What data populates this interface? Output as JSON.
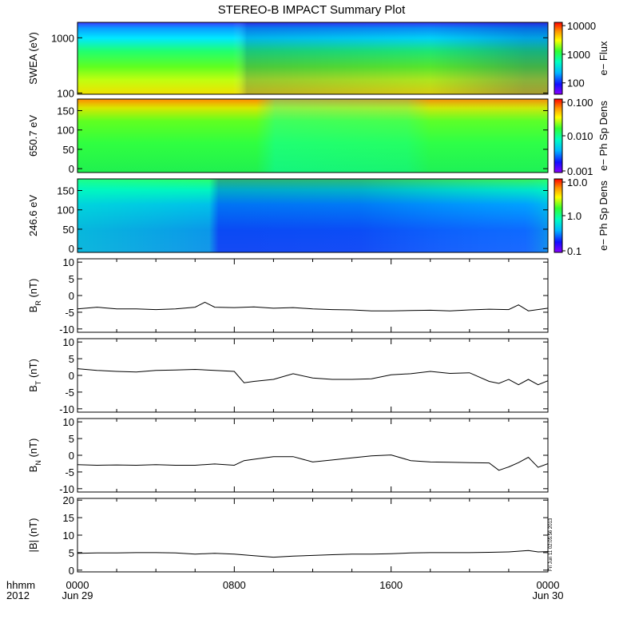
{
  "title": "STEREO-B IMPACT Summary Plot",
  "footer": {
    "format_label": "hhmm",
    "year": "2012"
  },
  "x_axis": {
    "range_hours": [
      0,
      24
    ],
    "ticks": [
      {
        "hour": 0,
        "label": "0000",
        "date": "Jun 29"
      },
      {
        "hour": 8,
        "label": "0800",
        "date": ""
      },
      {
        "hour": 16,
        "label": "1600",
        "date": ""
      },
      {
        "hour": 24,
        "label": "0000",
        "date": "Jun 30"
      }
    ]
  },
  "stamp": "Fri Jun 11 02:05:56 2013",
  "spectrograms": [
    {
      "id": "swea",
      "ylabel": "SWEA (eV)",
      "ylim": [
        95,
        1900
      ],
      "log_y": true,
      "yticks": [
        {
          "v": 100,
          "label": "100"
        },
        {
          "v": 1000,
          "label": "1000"
        }
      ],
      "colorbar": {
        "label": "e− Flux",
        "range": [
          40,
          13000
        ],
        "log": true,
        "ticks": [
          {
            "v": 100,
            "label": "100"
          },
          {
            "v": 1000,
            "label": "1000"
          },
          {
            "v": 10000,
            "label": "10000"
          }
        ]
      }
    },
    {
      "id": "pad650",
      "ylabel": "650.7 eV",
      "ylim": [
        -10,
        180
      ],
      "log_y": false,
      "yticks": [
        {
          "v": 0,
          "label": "0"
        },
        {
          "v": 50,
          "label": "50"
        },
        {
          "v": 100,
          "label": "100"
        },
        {
          "v": 150,
          "label": "150"
        }
      ],
      "colorbar": {
        "label": "e− Ph Sp Dens",
        "range": [
          0.001,
          0.1
        ],
        "log": true,
        "ticks": [
          {
            "v": 0.001,
            "label": "0.001"
          },
          {
            "v": 0.01,
            "label": "0.010"
          },
          {
            "v": 0.1,
            "label": "0.100"
          }
        ]
      }
    },
    {
      "id": "pad246",
      "ylabel": "246.6 eV",
      "ylim": [
        -10,
        180
      ],
      "log_y": false,
      "yticks": [
        {
          "v": 0,
          "label": "0"
        },
        {
          "v": 50,
          "label": "50"
        },
        {
          "v": 100,
          "label": "100"
        },
        {
          "v": 150,
          "label": "150"
        }
      ],
      "colorbar": {
        "label": "e− Ph Sp Dens",
        "range": [
          0.1,
          10
        ],
        "log": true,
        "ticks": [
          {
            "v": 0.1,
            "label": "0.1"
          },
          {
            "v": 1,
            "label": "1.0"
          },
          {
            "v": 10,
            "label": "10.0"
          }
        ]
      }
    }
  ],
  "chart_data": [
    {
      "type": "line",
      "id": "br",
      "ylabel": "B",
      "ylabel_sub": "R",
      "ylabel_unit": "(nT)",
      "ylim": [
        -11,
        11
      ],
      "yticks": [
        -10,
        -5,
        0,
        5,
        10
      ],
      "x": [
        0,
        1,
        2,
        3,
        4,
        5,
        6,
        6.5,
        7,
        8,
        9,
        10,
        11,
        12,
        13,
        14,
        15,
        16,
        17,
        18,
        19,
        20,
        21,
        22,
        22.5,
        23,
        24
      ],
      "y": [
        -4,
        -3.5,
        -4,
        -4,
        -4.2,
        -4,
        -3.5,
        -2,
        -3.5,
        -3.6,
        -3.4,
        -3.8,
        -3.6,
        -4,
        -4.2,
        -4.3,
        -4.6,
        -4.6,
        -4.5,
        -4.4,
        -4.6,
        -4.3,
        -4.1,
        -4.2,
        -2.8,
        -4.6,
        -3.8
      ]
    },
    {
      "type": "line",
      "id": "bt",
      "ylabel": "B",
      "ylabel_sub": "T",
      "ylabel_unit": "(nT)",
      "ylim": [
        -11,
        11
      ],
      "yticks": [
        -10,
        -5,
        0,
        5,
        10
      ],
      "x": [
        0,
        1,
        2,
        3,
        4,
        5,
        6,
        7,
        8,
        8.5,
        9,
        10,
        11,
        12,
        13,
        14,
        15,
        16,
        17,
        18,
        19,
        20,
        21,
        21.5,
        22,
        22.5,
        23,
        23.5,
        24
      ],
      "y": [
        2,
        1.5,
        1.2,
        1.0,
        1.5,
        1.6,
        1.8,
        1.5,
        1.2,
        -2.2,
        -1.8,
        -1.2,
        0.5,
        -0.8,
        -1.2,
        -1.2,
        -1.0,
        0.2,
        0.5,
        1.2,
        0.6,
        0.8,
        -1.8,
        -2.4,
        -1.2,
        -2.8,
        -1.2,
        -2.8,
        -1.6
      ]
    },
    {
      "type": "line",
      "id": "bn",
      "ylabel": "B",
      "ylabel_sub": "N",
      "ylabel_unit": "(nT)",
      "ylim": [
        -11,
        11
      ],
      "yticks": [
        -10,
        -5,
        0,
        5,
        10
      ],
      "x": [
        0,
        1,
        2,
        3,
        4,
        5,
        6,
        7,
        8,
        8.5,
        9,
        10,
        11,
        12,
        13,
        14,
        15,
        16,
        17,
        18,
        19,
        20,
        21,
        21.5,
        22,
        22.5,
        23,
        23.5,
        24
      ],
      "y": [
        -2.8,
        -3,
        -2.9,
        -3,
        -2.8,
        -3,
        -3,
        -2.6,
        -3,
        -1.6,
        -1.2,
        -0.4,
        -0.4,
        -2.0,
        -1.4,
        -0.8,
        -0.2,
        0.1,
        -1.6,
        -2.0,
        -2.1,
        -2.2,
        -2.3,
        -4.5,
        -3.5,
        -2.2,
        -0.6,
        -3.6,
        -2.5
      ]
    },
    {
      "type": "line",
      "id": "btot",
      "ylabel": "|B|",
      "ylabel_sub": "",
      "ylabel_unit": "(nT)",
      "ylim": [
        -0.5,
        20.5
      ],
      "yticks": [
        0,
        5,
        10,
        15,
        20
      ],
      "x": [
        0,
        1,
        2,
        3,
        4,
        5,
        6,
        7,
        8,
        9,
        10,
        11,
        12,
        13,
        14,
        15,
        16,
        17,
        18,
        19,
        20,
        21,
        22,
        23,
        23.5,
        24
      ],
      "y": [
        4.8,
        4.9,
        4.9,
        5,
        5,
        4.9,
        4.6,
        4.8,
        4.6,
        4.1,
        3.7,
        4.0,
        4.2,
        4.4,
        4.6,
        4.6,
        4.7,
        4.9,
        5.0,
        5.0,
        5.0,
        5.1,
        5.2,
        5.6,
        5.2,
        5.3
      ]
    }
  ]
}
